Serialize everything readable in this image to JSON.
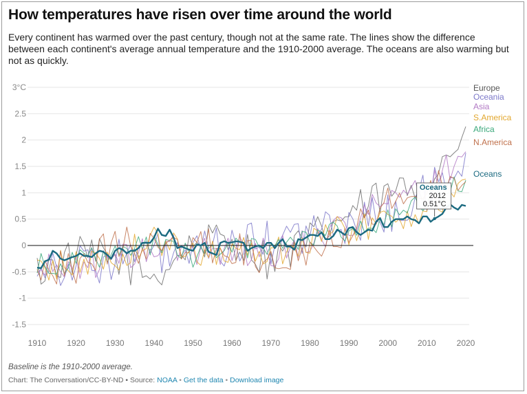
{
  "header": {
    "title": "How temperatures have risen over time around the world",
    "subtitle": "Every continent has warmed over the past century, though not at the same rate. The lines show the difference between each continent's average annual temperature and the 1910-2000 average. The oceans are also warming but not as quickly."
  },
  "footer": {
    "note": "Baseline is the 1910-2000 average.",
    "credit_prefix": "Chart: The Conversation/CC-BY-ND • Source: ",
    "source_link": "NOAA",
    "sep1": " • ",
    "data_link": "Get the data",
    "sep2": " • ",
    "download_link": "Download image"
  },
  "chart_data": {
    "type": "line",
    "title": "How temperatures have risen over time around the world",
    "xlabel": "",
    "ylabel": "",
    "xlim": [
      1910,
      2020
    ],
    "ylim": [
      -1.5,
      3
    ],
    "x_ticks": [
      1910,
      1920,
      1930,
      1940,
      1950,
      1960,
      1970,
      1980,
      1990,
      2000,
      2010,
      2020
    ],
    "y_ticks": [
      {
        "value": 3,
        "label": "3°C"
      },
      {
        "value": 2.5,
        "label": "2.5"
      },
      {
        "value": 2,
        "label": "2"
      },
      {
        "value": 1.5,
        "label": "1.5"
      },
      {
        "value": 1,
        "label": "1"
      },
      {
        "value": 0.5,
        "label": "0.5"
      },
      {
        "value": 0,
        "label": "0"
      },
      {
        "value": -0.5,
        "label": "-0.5"
      },
      {
        "value": -1,
        "label": "-1"
      },
      {
        "value": -1.5,
        "label": "-1.5"
      }
    ],
    "grid": true,
    "legend_position": "right",
    "annotation": {
      "series": "Oceans",
      "label": "Oceans",
      "year": "2012",
      "value": "0.51°C",
      "x": 2012,
      "y": 0.51
    },
    "series": [
      {
        "name": "Europe",
        "color": "#6f6f6f",
        "anchors": [
          [
            1910,
            -0.5
          ],
          [
            1920,
            -0.2
          ],
          [
            1930,
            -0.25
          ],
          [
            1940,
            -0.6
          ],
          [
            1950,
            0.05
          ],
          [
            1960,
            0.1
          ],
          [
            1970,
            -0.3
          ],
          [
            1980,
            0.1
          ],
          [
            1990,
            0.6
          ],
          [
            2000,
            0.95
          ],
          [
            2010,
            1.2
          ],
          [
            2020,
            2.15
          ]
        ]
      },
      {
        "name": "Oceania",
        "color": "#7b77c9",
        "anchors": [
          [
            1910,
            -0.3
          ],
          [
            1920,
            -0.4
          ],
          [
            1930,
            -0.25
          ],
          [
            1940,
            -0.15
          ],
          [
            1950,
            -0.2
          ],
          [
            1960,
            0.0
          ],
          [
            1970,
            0.05
          ],
          [
            1980,
            0.25
          ],
          [
            1990,
            0.4
          ],
          [
            2000,
            0.6
          ],
          [
            2010,
            0.95
          ],
          [
            2020,
            1.65
          ]
        ]
      },
      {
        "name": "Asia",
        "color": "#b178c4",
        "anchors": [
          [
            1910,
            -0.5
          ],
          [
            1920,
            -0.35
          ],
          [
            1930,
            -0.3
          ],
          [
            1940,
            -0.05
          ],
          [
            1950,
            -0.1
          ],
          [
            1960,
            -0.05
          ],
          [
            1970,
            -0.15
          ],
          [
            1980,
            0.1
          ],
          [
            1990,
            0.45
          ],
          [
            2000,
            0.85
          ],
          [
            2010,
            1.05
          ],
          [
            2020,
            1.85
          ]
        ]
      },
      {
        "name": "S.America",
        "color": "#e2a72e",
        "anchors": [
          [
            1910,
            -0.45
          ],
          [
            1920,
            -0.35
          ],
          [
            1930,
            -0.25
          ],
          [
            1940,
            0.1
          ],
          [
            1950,
            -0.15
          ],
          [
            1960,
            -0.05
          ],
          [
            1970,
            -0.15
          ],
          [
            1980,
            0.15
          ],
          [
            1990,
            0.3
          ],
          [
            2000,
            0.45
          ],
          [
            2010,
            0.75
          ],
          [
            2020,
            1.1
          ]
        ]
      },
      {
        "name": "Africa",
        "color": "#3aa87a",
        "anchors": [
          [
            1910,
            -0.35
          ],
          [
            1920,
            -0.3
          ],
          [
            1930,
            -0.2
          ],
          [
            1940,
            0.05
          ],
          [
            1950,
            -0.2
          ],
          [
            1960,
            -0.05
          ],
          [
            1970,
            -0.05
          ],
          [
            1980,
            0.2
          ],
          [
            1990,
            0.3
          ],
          [
            2000,
            0.5
          ],
          [
            2010,
            0.8
          ],
          [
            2020,
            1.2
          ]
        ]
      },
      {
        "name": "N.America",
        "color": "#c0714c",
        "anchors": [
          [
            1910,
            -0.4
          ],
          [
            1920,
            -0.4
          ],
          [
            1930,
            0.05
          ],
          [
            1940,
            -0.05
          ],
          [
            1950,
            0.0
          ],
          [
            1960,
            -0.05
          ],
          [
            1970,
            -0.3
          ],
          [
            1980,
            0.0
          ],
          [
            1990,
            0.35
          ],
          [
            2000,
            0.85
          ],
          [
            2010,
            1.0
          ],
          [
            2020,
            1.45
          ]
        ]
      },
      {
        "name": "Oceans",
        "color": "#1b6a80",
        "values": [
          [
            1910,
            -0.42
          ],
          [
            1911,
            -0.43
          ],
          [
            1912,
            -0.3
          ],
          [
            1913,
            -0.27
          ],
          [
            1914,
            -0.1
          ],
          [
            1915,
            -0.15
          ],
          [
            1916,
            -0.25
          ],
          [
            1917,
            -0.28
          ],
          [
            1918,
            -0.25
          ],
          [
            1919,
            -0.22
          ],
          [
            1920,
            -0.2
          ],
          [
            1921,
            -0.15
          ],
          [
            1922,
            -0.2
          ],
          [
            1923,
            -0.2
          ],
          [
            1924,
            -0.22
          ],
          [
            1925,
            -0.15
          ],
          [
            1926,
            -0.1
          ],
          [
            1927,
            -0.12
          ],
          [
            1928,
            -0.18
          ],
          [
            1929,
            -0.25
          ],
          [
            1930,
            -0.1
          ],
          [
            1931,
            -0.05
          ],
          [
            1932,
            -0.08
          ],
          [
            1933,
            -0.15
          ],
          [
            1934,
            -0.1
          ],
          [
            1935,
            -0.1
          ],
          [
            1936,
            -0.05
          ],
          [
            1937,
            0.05
          ],
          [
            1938,
            0.05
          ],
          [
            1939,
            0.05
          ],
          [
            1940,
            0.15
          ],
          [
            1941,
            0.32
          ],
          [
            1942,
            0.2
          ],
          [
            1943,
            0.18
          ],
          [
            1944,
            0.3
          ],
          [
            1945,
            0.15
          ],
          [
            1946,
            -0.05
          ],
          [
            1947,
            -0.02
          ],
          [
            1948,
            -0.05
          ],
          [
            1949,
            -0.08
          ],
          [
            1950,
            -0.1
          ],
          [
            1951,
            0.02
          ],
          [
            1952,
            0.0
          ],
          [
            1953,
            0.05
          ],
          [
            1954,
            -0.12
          ],
          [
            1955,
            -0.15
          ],
          [
            1956,
            -0.18
          ],
          [
            1957,
            0.05
          ],
          [
            1958,
            0.08
          ],
          [
            1959,
            0.05
          ],
          [
            1960,
            0.06
          ],
          [
            1961,
            0.08
          ],
          [
            1962,
            0.07
          ],
          [
            1963,
            0.05
          ],
          [
            1964,
            -0.1
          ],
          [
            1965,
            -0.05
          ],
          [
            1966,
            -0.02
          ],
          [
            1967,
            0.0
          ],
          [
            1968,
            -0.05
          ],
          [
            1969,
            0.05
          ],
          [
            1970,
            0.05
          ],
          [
            1971,
            -0.05
          ],
          [
            1972,
            0.05
          ],
          [
            1973,
            0.12
          ],
          [
            1974,
            -0.02
          ],
          [
            1975,
            -0.02
          ],
          [
            1976,
            -0.08
          ],
          [
            1977,
            0.12
          ],
          [
            1978,
            0.1
          ],
          [
            1979,
            0.15
          ],
          [
            1980,
            0.2
          ],
          [
            1981,
            0.2
          ],
          [
            1982,
            0.18
          ],
          [
            1983,
            0.25
          ],
          [
            1984,
            0.12
          ],
          [
            1985,
            0.12
          ],
          [
            1986,
            0.18
          ],
          [
            1987,
            0.3
          ],
          [
            1988,
            0.25
          ],
          [
            1989,
            0.2
          ],
          [
            1990,
            0.33
          ],
          [
            1991,
            0.35
          ],
          [
            1992,
            0.25
          ],
          [
            1993,
            0.2
          ],
          [
            1994,
            0.25
          ],
          [
            1995,
            0.3
          ],
          [
            1996,
            0.28
          ],
          [
            1997,
            0.45
          ],
          [
            1998,
            0.52
          ],
          [
            1999,
            0.35
          ],
          [
            2000,
            0.35
          ],
          [
            2001,
            0.45
          ],
          [
            2002,
            0.5
          ],
          [
            2003,
            0.5
          ],
          [
            2004,
            0.5
          ],
          [
            2005,
            0.55
          ],
          [
            2006,
            0.5
          ],
          [
            2007,
            0.48
          ],
          [
            2008,
            0.42
          ],
          [
            2009,
            0.55
          ],
          [
            2010,
            0.55
          ],
          [
            2011,
            0.45
          ],
          [
            2012,
            0.51
          ],
          [
            2013,
            0.55
          ],
          [
            2014,
            0.6
          ],
          [
            2015,
            0.72
          ],
          [
            2016,
            0.78
          ],
          [
            2017,
            0.72
          ],
          [
            2018,
            0.68
          ],
          [
            2019,
            0.77
          ],
          [
            2020,
            0.75
          ]
        ]
      }
    ]
  }
}
